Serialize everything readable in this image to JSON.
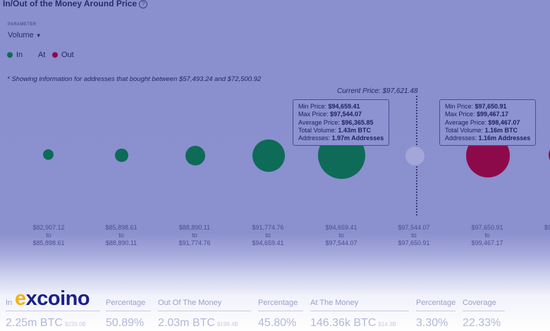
{
  "header": {
    "title": "In/Out of the Money Around Price",
    "help_icon": "question-circle-icon"
  },
  "parameter": {
    "label": "PARAMETER",
    "value": "Volume",
    "chevron": "chevron-down-icon"
  },
  "legend": {
    "items": [
      {
        "label": "In",
        "color": "#0e6b57"
      },
      {
        "label": "At",
        "color": "#a3a6d6"
      },
      {
        "label": "Out",
        "color": "#8d0a4a"
      }
    ]
  },
  "note": "* Showing information for addresses that bought between $57,493.24 and $72,500.92",
  "current_price": "Current Price: $97,621.48",
  "bubbles": [
    {
      "state": "In",
      "color": "#0e6b57"
    },
    {
      "state": "In",
      "color": "#0e6b57"
    },
    {
      "state": "In",
      "color": "#0e6b57"
    },
    {
      "state": "In",
      "color": "#0e6b57"
    },
    {
      "state": "In",
      "color": "#0e6b57"
    },
    {
      "state": "At",
      "color": "#a3a6d6"
    },
    {
      "state": "Out",
      "color": "#8d0a4a"
    },
    {
      "state": "Out",
      "color": "#8d0a4a"
    }
  ],
  "ticks": [
    {
      "from": "$82,907.12",
      "to_word": "to",
      "to": "$85,898.61"
    },
    {
      "from": "$85,898.61",
      "to_word": "to",
      "to": "$88,890.11"
    },
    {
      "from": "$88,890.11",
      "to_word": "to",
      "to": "$91,774.76"
    },
    {
      "from": "$91,774.76",
      "to_word": "to",
      "to": "$94,659.41"
    },
    {
      "from": "$94,659.41",
      "to_word": "to",
      "to": "$97,544.07"
    },
    {
      "from": "$97,544.07",
      "to_word": "to",
      "to": "$97,650.91"
    },
    {
      "from": "$97,650.91",
      "to_word": "to",
      "to": "$99,467.17"
    },
    {
      "from": "$9",
      "to_word": "",
      "to": ""
    }
  ],
  "tooltips": [
    {
      "rows": [
        {
          "label": "Min Price: ",
          "value": "$94,659.41"
        },
        {
          "label": "Max Price: ",
          "value": "$97,544.07"
        },
        {
          "label": "Average Price: ",
          "value": "$96,365.85"
        },
        {
          "label": "Total Volume: ",
          "value": "1.43m BTC"
        },
        {
          "label": "Addresses: ",
          "value": "1.97m Addresses"
        }
      ]
    },
    {
      "rows": [
        {
          "label": "Min Price: ",
          "value": "$97,650.91"
        },
        {
          "label": "Max Price: ",
          "value": "$99,467.17"
        },
        {
          "label": "Average Price: ",
          "value": "$98,467.07"
        },
        {
          "label": "Total Volume: ",
          "value": "1.16m BTC"
        },
        {
          "label": "Addresses: ",
          "value": "1.16m Addresses"
        }
      ]
    }
  ],
  "summary": {
    "headers": [
      "In",
      "Percentage",
      "Out Of The Money",
      "Percentage",
      "At The Money",
      "Percentage",
      "Coverage"
    ],
    "values": [
      {
        "main": "2.25m BTC",
        "sub": "$220.0B"
      },
      {
        "main": "50.89%",
        "sub": ""
      },
      {
        "main": "2.03m BTC",
        "sub": "$198.4B"
      },
      {
        "main": "45.80%",
        "sub": ""
      },
      {
        "main": "146.36k BTC",
        "sub": "$14.3B"
      },
      {
        "main": "3.30%",
        "sub": ""
      },
      {
        "main": "22.33%",
        "sub": ""
      }
    ]
  },
  "watermark": {
    "prefix": "e",
    "rest": "xcoino",
    "prefix_color": "#f2b21a",
    "color": "#1b1f8a"
  }
}
